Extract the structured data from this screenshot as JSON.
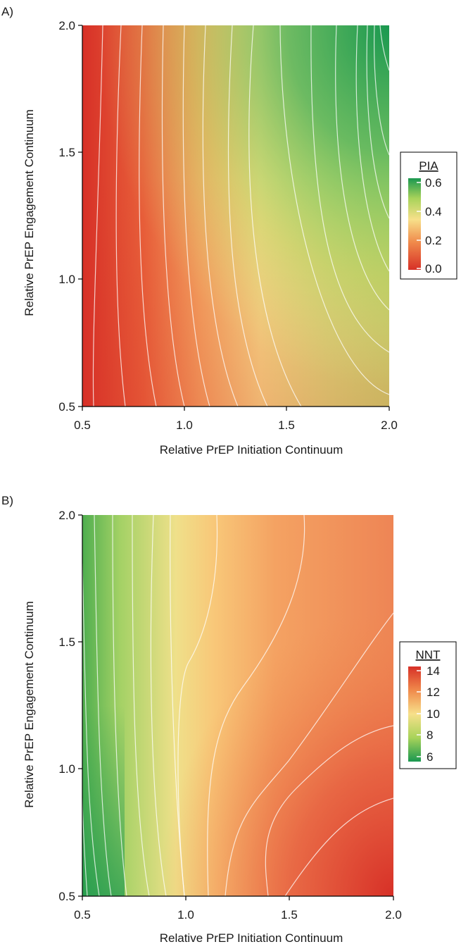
{
  "chart_data": [
    {
      "type": "heatmap",
      "panel_label": "A)",
      "xlabel": "Relative PrEP Initiation Continuum",
      "ylabel": "Relative PrEP Engagement Continuum",
      "xlim": [
        0.5,
        2.0
      ],
      "ylim": [
        0.5,
        2.0
      ],
      "xticks": [
        "0.5",
        "1.0",
        "1.5",
        "2.0"
      ],
      "yticks": [
        "0.5",
        "1.0",
        "1.5",
        "2.0"
      ],
      "contour_lines": true,
      "legend": {
        "title": "PIA",
        "placement": "right",
        "range": [
          0.0,
          0.6
        ],
        "ticks": [
          "0.0",
          "0.2",
          "0.4",
          "0.6"
        ],
        "colors": [
          "#d73027",
          "#f08a4b",
          "#f7e08a",
          "#a8d35a",
          "#1a9850"
        ]
      }
    },
    {
      "type": "heatmap",
      "panel_label": "B)",
      "xlabel": "Relative PrEP Initiation Continuum",
      "ylabel": "Relative PrEP Engagement Continuum",
      "xlim": [
        0.5,
        2.0
      ],
      "ylim": [
        0.5,
        2.0
      ],
      "xticks": [
        "0.5",
        "1.0",
        "1.5",
        "2.0"
      ],
      "yticks": [
        "0.5",
        "1.0",
        "1.5",
        "2.0"
      ],
      "contour_lines": true,
      "legend": {
        "title": "NNT",
        "placement": "right",
        "range": [
          6,
          14
        ],
        "ticks": [
          "6",
          "8",
          "10",
          "12",
          "14"
        ],
        "colors": [
          "#1a9850",
          "#a8d35a",
          "#f7e08a",
          "#f08a4b",
          "#d73027"
        ]
      }
    }
  ]
}
